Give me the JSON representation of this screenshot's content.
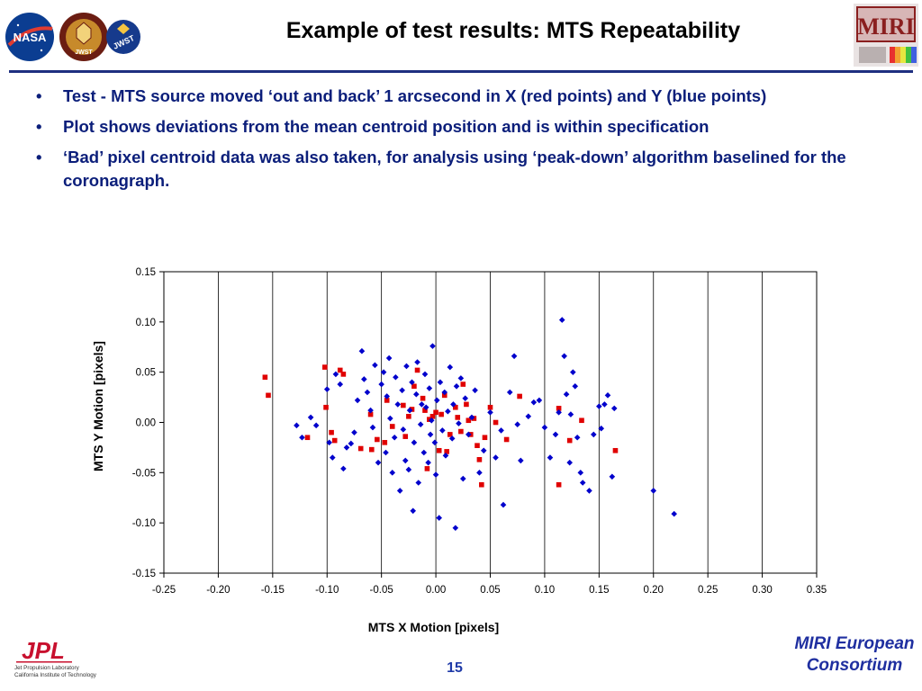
{
  "header": {
    "title": "Example of test results: MTS Repeatability",
    "logos": [
      "NASA",
      "JWST",
      "JWST",
      "MIRI"
    ]
  },
  "bullets": [
    "Test - MTS source moved ‘out and back’ 1 arcsecond in X (red points) and Y  (blue points)",
    "Plot shows deviations from the mean centroid position and is within specification",
    "‘Bad’ pixel centroid data was also taken, for analysis using ‘peak-down’ algorithm baselined for the coronagraph."
  ],
  "colors": {
    "title_rule": "#1f2f80",
    "bullet_text": "#0b1e7a",
    "series_x": "#e00000",
    "series_y": "#0000cc"
  },
  "chart_data": {
    "type": "scatter",
    "xlabel": "MTS X Motion [pixels]",
    "ylabel": "MTS Y Motion [pixels]",
    "xlim": [
      -0.25,
      0.35
    ],
    "ylim": [
      -0.15,
      0.15
    ],
    "xticks": [
      "-0.25",
      "-0.20",
      "-0.15",
      "-0.10",
      "-0.05",
      "0.00",
      "0.05",
      "0.10",
      "0.15",
      "0.20",
      "0.25",
      "0.30",
      "0.35"
    ],
    "yticks": [
      "0.15",
      "0.10",
      "0.05",
      "0.00",
      "-0.05",
      "-0.10",
      "-0.15"
    ],
    "grid": "vertical",
    "series": [
      {
        "name": "X moves (red points)",
        "color": "#e00000",
        "marker": "square",
        "points": [
          [
            -0.157,
            0.045
          ],
          [
            -0.154,
            0.027
          ],
          [
            -0.118,
            -0.015
          ],
          [
            -0.102,
            0.055
          ],
          [
            -0.101,
            0.015
          ],
          [
            -0.096,
            -0.01
          ],
          [
            -0.093,
            -0.018
          ],
          [
            -0.088,
            0.052
          ],
          [
            -0.085,
            0.048
          ],
          [
            -0.069,
            -0.026
          ],
          [
            -0.06,
            0.008
          ],
          [
            -0.059,
            -0.027
          ],
          [
            -0.054,
            -0.017
          ],
          [
            -0.047,
            -0.02
          ],
          [
            -0.045,
            0.022
          ],
          [
            -0.04,
            -0.004
          ],
          [
            -0.03,
            0.017
          ],
          [
            -0.028,
            -0.014
          ],
          [
            -0.025,
            0.006
          ],
          [
            -0.022,
            0.013
          ],
          [
            -0.02,
            0.036
          ],
          [
            -0.017,
            0.052
          ],
          [
            -0.012,
            0.024
          ],
          [
            -0.01,
            0.012
          ],
          [
            -0.006,
            0.003
          ],
          [
            -0.008,
            -0.046
          ],
          [
            -0.003,
            0.006
          ],
          [
            0.0,
            0.01
          ],
          [
            0.003,
            -0.028
          ],
          [
            0.005,
            0.008
          ],
          [
            0.008,
            0.027
          ],
          [
            0.01,
            -0.029
          ],
          [
            0.013,
            -0.012
          ],
          [
            0.018,
            0.015
          ],
          [
            0.02,
            0.005
          ],
          [
            0.023,
            -0.009
          ],
          [
            0.025,
            0.038
          ],
          [
            0.028,
            0.018
          ],
          [
            0.03,
            0.002
          ],
          [
            0.032,
            -0.012
          ],
          [
            0.035,
            0.004
          ],
          [
            0.038,
            -0.023
          ],
          [
            0.04,
            -0.037
          ],
          [
            0.042,
            -0.062
          ],
          [
            0.045,
            -0.015
          ],
          [
            0.05,
            0.015
          ],
          [
            0.055,
            0.0
          ],
          [
            0.065,
            -0.017
          ],
          [
            0.077,
            0.026
          ],
          [
            0.113,
            0.014
          ],
          [
            0.113,
            -0.062
          ],
          [
            0.123,
            -0.018
          ],
          [
            0.134,
            0.002
          ],
          [
            0.165,
            -0.028
          ]
        ]
      },
      {
        "name": "Y moves (blue points)",
        "color": "#0000cc",
        "marker": "diamond",
        "points": [
          [
            -0.128,
            -0.003
          ],
          [
            -0.123,
            -0.015
          ],
          [
            -0.115,
            0.005
          ],
          [
            -0.11,
            -0.003
          ],
          [
            -0.1,
            0.033
          ],
          [
            -0.098,
            -0.02
          ],
          [
            -0.095,
            -0.035
          ],
          [
            -0.092,
            0.048
          ],
          [
            -0.088,
            0.038
          ],
          [
            -0.085,
            -0.046
          ],
          [
            -0.082,
            -0.025
          ],
          [
            -0.078,
            -0.021
          ],
          [
            -0.075,
            -0.01
          ],
          [
            -0.072,
            0.022
          ],
          [
            -0.068,
            0.071
          ],
          [
            -0.066,
            0.043
          ],
          [
            -0.063,
            0.03
          ],
          [
            -0.06,
            0.012
          ],
          [
            -0.058,
            -0.005
          ],
          [
            -0.056,
            0.057
          ],
          [
            -0.053,
            -0.04
          ],
          [
            -0.05,
            0.038
          ],
          [
            -0.048,
            0.05
          ],
          [
            -0.046,
            -0.03
          ],
          [
            -0.045,
            0.026
          ],
          [
            -0.043,
            0.064
          ],
          [
            -0.042,
            0.004
          ],
          [
            -0.04,
            -0.05
          ],
          [
            -0.038,
            -0.015
          ],
          [
            -0.037,
            0.045
          ],
          [
            -0.035,
            0.018
          ],
          [
            -0.033,
            -0.068
          ],
          [
            -0.031,
            0.032
          ],
          [
            -0.03,
            -0.007
          ],
          [
            -0.028,
            -0.038
          ],
          [
            -0.027,
            0.056
          ],
          [
            -0.025,
            -0.047
          ],
          [
            -0.024,
            0.012
          ],
          [
            -0.022,
            0.04
          ],
          [
            -0.021,
            -0.088
          ],
          [
            -0.02,
            -0.02
          ],
          [
            -0.018,
            0.028
          ],
          [
            -0.017,
            0.06
          ],
          [
            -0.016,
            -0.06
          ],
          [
            -0.014,
            -0.002
          ],
          [
            -0.013,
            0.018
          ],
          [
            -0.011,
            -0.03
          ],
          [
            -0.01,
            0.048
          ],
          [
            -0.009,
            0.015
          ],
          [
            -0.007,
            -0.04
          ],
          [
            -0.006,
            0.034
          ],
          [
            -0.005,
            -0.012
          ],
          [
            -0.004,
            0.002
          ],
          [
            -0.003,
            0.076
          ],
          [
            -0.001,
            -0.02
          ],
          [
            0.0,
            -0.052
          ],
          [
            0.001,
            0.022
          ],
          [
            0.003,
            -0.095
          ],
          [
            0.004,
            0.04
          ],
          [
            0.006,
            -0.008
          ],
          [
            0.008,
            0.03
          ],
          [
            0.009,
            -0.033
          ],
          [
            0.011,
            0.011
          ],
          [
            0.013,
            0.055
          ],
          [
            0.015,
            -0.016
          ],
          [
            0.016,
            0.018
          ],
          [
            0.018,
            -0.105
          ],
          [
            0.019,
            0.036
          ],
          [
            0.021,
            -0.001
          ],
          [
            0.023,
            0.044
          ],
          [
            0.025,
            -0.056
          ],
          [
            0.027,
            0.024
          ],
          [
            0.03,
            -0.012
          ],
          [
            0.033,
            0.005
          ],
          [
            0.036,
            0.032
          ],
          [
            0.04,
            -0.05
          ],
          [
            0.044,
            -0.028
          ],
          [
            0.05,
            0.01
          ],
          [
            0.055,
            -0.035
          ],
          [
            0.06,
            -0.008
          ],
          [
            0.062,
            -0.082
          ],
          [
            0.068,
            0.03
          ],
          [
            0.072,
            0.066
          ],
          [
            0.075,
            -0.002
          ],
          [
            0.078,
            -0.038
          ],
          [
            0.085,
            0.006
          ],
          [
            0.09,
            0.02
          ],
          [
            0.095,
            0.022
          ],
          [
            0.1,
            -0.005
          ],
          [
            0.105,
            -0.035
          ],
          [
            0.11,
            -0.012
          ],
          [
            0.113,
            0.01
          ],
          [
            0.116,
            0.102
          ],
          [
            0.118,
            0.066
          ],
          [
            0.12,
            0.028
          ],
          [
            0.123,
            -0.04
          ],
          [
            0.124,
            0.008
          ],
          [
            0.126,
            0.05
          ],
          [
            0.128,
            0.036
          ],
          [
            0.13,
            -0.015
          ],
          [
            0.133,
            -0.05
          ],
          [
            0.135,
            -0.06
          ],
          [
            0.141,
            -0.068
          ],
          [
            0.145,
            -0.012
          ],
          [
            0.15,
            0.016
          ],
          [
            0.152,
            -0.006
          ],
          [
            0.155,
            0.018
          ],
          [
            0.158,
            0.027
          ],
          [
            0.162,
            -0.054
          ],
          [
            0.164,
            0.014
          ],
          [
            0.2,
            -0.068
          ],
          [
            0.219,
            -0.091
          ]
        ]
      }
    ]
  },
  "footer": {
    "org_logo": "JPL",
    "org_line1": "Jet Propulsion Laboratory",
    "org_line2": "California Institute of Technology",
    "page_number": "15",
    "consortium_line1": "MIRI European",
    "consortium_line2": "Consortium"
  }
}
